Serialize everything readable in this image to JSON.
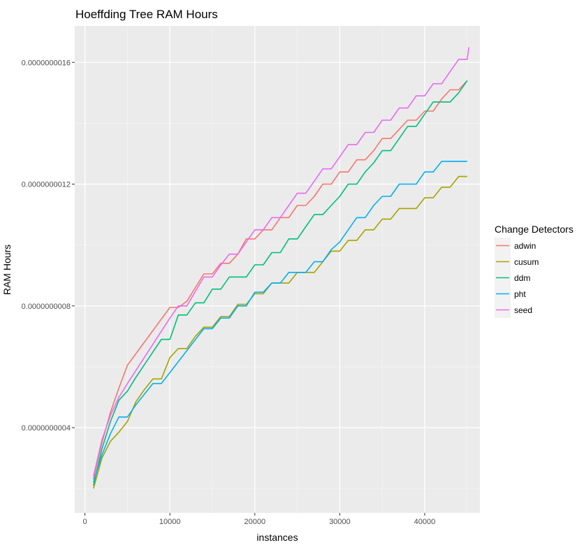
{
  "chart_data": {
    "type": "line",
    "title": "Hoeffding Tree RAM Hours",
    "xlabel": "instances",
    "ylabel": "RAM Hours",
    "xlim": [
      -1200,
      46500
    ],
    "ylim": [
      1.2e-10,
      1.72e-09
    ],
    "x_ticks": [
      0,
      10000,
      20000,
      30000,
      40000
    ],
    "x_tick_labels": [
      "0",
      "10000",
      "20000",
      "30000",
      "40000"
    ],
    "y_ticks": [
      4e-10,
      8e-10,
      1.2e-09,
      1.6e-09
    ],
    "y_tick_labels": [
      "0.0000000004",
      "0.0000000008",
      "0.0000000012",
      "0.0000000016"
    ],
    "grid": true,
    "background": "#ebebeb",
    "legend": {
      "title": "Change Detectors",
      "position": "right"
    },
    "series": [
      {
        "name": "adwin",
        "color": "#f8766d",
        "points": [
          [
            1000,
            2.3e-10
          ],
          [
            2000,
            3.5e-10
          ],
          [
            3000,
            4.5e-10
          ],
          [
            4000,
            5.3e-10
          ],
          [
            5000,
            6.05e-10
          ],
          [
            10000,
            7.95e-10
          ],
          [
            11000,
            7.95e-10
          ],
          [
            12000,
            8.15e-10
          ],
          [
            14000,
            9.05e-10
          ],
          [
            15000,
            9.05e-10
          ],
          [
            16000,
            9.4e-10
          ],
          [
            17000,
            9.4e-10
          ],
          [
            18000,
            9.7e-10
          ],
          [
            19000,
            1.02e-09
          ],
          [
            20000,
            1.02e-09
          ],
          [
            21000,
            1.05e-09
          ],
          [
            22000,
            1.05e-09
          ],
          [
            23000,
            1.09e-09
          ],
          [
            24000,
            1.09e-09
          ],
          [
            25000,
            1.13e-09
          ],
          [
            26000,
            1.13e-09
          ],
          [
            27000,
            1.16e-09
          ],
          [
            28000,
            1.2e-09
          ],
          [
            29000,
            1.2e-09
          ],
          [
            30000,
            1.24e-09
          ],
          [
            31000,
            1.24e-09
          ],
          [
            32000,
            1.28e-09
          ],
          [
            33000,
            1.28e-09
          ],
          [
            34000,
            1.31e-09
          ],
          [
            35000,
            1.35e-09
          ],
          [
            36000,
            1.35e-09
          ],
          [
            37000,
            1.38e-09
          ],
          [
            38000,
            1.41e-09
          ],
          [
            39000,
            1.41e-09
          ],
          [
            40000,
            1.44e-09
          ],
          [
            41000,
            1.44e-09
          ],
          [
            42000,
            1.48e-09
          ],
          [
            43000,
            1.51e-09
          ],
          [
            44000,
            1.51e-09
          ],
          [
            45000,
            1.54e-09
          ]
        ]
      },
      {
        "name": "cusum",
        "color": "#a3a500",
        "points": [
          [
            1000,
            2e-10
          ],
          [
            2000,
            3e-10
          ],
          [
            3000,
            3.55e-10
          ],
          [
            4000,
            3.85e-10
          ],
          [
            5000,
            4.2e-10
          ],
          [
            6000,
            4.85e-10
          ],
          [
            7000,
            5.25e-10
          ],
          [
            8000,
            5.6e-10
          ],
          [
            9000,
            5.6e-10
          ],
          [
            10000,
            6.3e-10
          ],
          [
            11000,
            6.6e-10
          ],
          [
            12000,
            6.6e-10
          ],
          [
            13000,
            7e-10
          ],
          [
            14000,
            7.3e-10
          ],
          [
            15000,
            7.3e-10
          ],
          [
            16000,
            7.65e-10
          ],
          [
            17000,
            7.65e-10
          ],
          [
            18000,
            8.05e-10
          ],
          [
            19000,
            8.05e-10
          ],
          [
            20000,
            8.4e-10
          ],
          [
            21000,
            8.4e-10
          ],
          [
            22000,
            8.75e-10
          ],
          [
            24000,
            8.75e-10
          ],
          [
            25000,
            9.1e-10
          ],
          [
            27000,
            9.1e-10
          ],
          [
            28000,
            9.45e-10
          ],
          [
            29000,
            9.8e-10
          ],
          [
            30000,
            9.8e-10
          ],
          [
            31000,
            1.015e-09
          ],
          [
            32000,
            1.015e-09
          ],
          [
            33000,
            1.05e-09
          ],
          [
            34000,
            1.05e-09
          ],
          [
            35000,
            1.085e-09
          ],
          [
            36000,
            1.085e-09
          ],
          [
            37000,
            1.12e-09
          ],
          [
            39000,
            1.12e-09
          ],
          [
            40000,
            1.155e-09
          ],
          [
            41000,
            1.155e-09
          ],
          [
            42000,
            1.19e-09
          ],
          [
            43000,
            1.19e-09
          ],
          [
            44000,
            1.225e-09
          ],
          [
            45000,
            1.225e-09
          ]
        ]
      },
      {
        "name": "ddm",
        "color": "#00bf7d",
        "points": [
          [
            1000,
            2.1e-10
          ],
          [
            2000,
            3.3e-10
          ],
          [
            3000,
            4.2e-10
          ],
          [
            4000,
            4.9e-10
          ],
          [
            5000,
            5.2e-10
          ],
          [
            6000,
            5.65e-10
          ],
          [
            9000,
            6.9e-10
          ],
          [
            10000,
            6.9e-10
          ],
          [
            11000,
            7.7e-10
          ],
          [
            12000,
            7.7e-10
          ],
          [
            13000,
            8.1e-10
          ],
          [
            14000,
            8.1e-10
          ],
          [
            15000,
            8.55e-10
          ],
          [
            16000,
            8.55e-10
          ],
          [
            17000,
            8.95e-10
          ],
          [
            19000,
            8.95e-10
          ],
          [
            20000,
            9.35e-10
          ],
          [
            21000,
            9.35e-10
          ],
          [
            22000,
            9.75e-10
          ],
          [
            23000,
            9.75e-10
          ],
          [
            24000,
            1.02e-09
          ],
          [
            25000,
            1.02e-09
          ],
          [
            26000,
            1.06e-09
          ],
          [
            27000,
            1.1e-09
          ],
          [
            28000,
            1.1e-09
          ],
          [
            29000,
            1.13e-09
          ],
          [
            30000,
            1.16e-09
          ],
          [
            31000,
            1.2e-09
          ],
          [
            32000,
            1.2e-09
          ],
          [
            33000,
            1.24e-09
          ],
          [
            34000,
            1.27e-09
          ],
          [
            35000,
            1.31e-09
          ],
          [
            36000,
            1.31e-09
          ],
          [
            37000,
            1.35e-09
          ],
          [
            38000,
            1.39e-09
          ],
          [
            39000,
            1.39e-09
          ],
          [
            40000,
            1.43e-09
          ],
          [
            41000,
            1.47e-09
          ],
          [
            43000,
            1.47e-09
          ],
          [
            44000,
            1.5e-09
          ],
          [
            45000,
            1.54e-09
          ]
        ]
      },
      {
        "name": "pht",
        "color": "#00b0f6",
        "points": [
          [
            1000,
            2.2e-10
          ],
          [
            2000,
            3.1e-10
          ],
          [
            3000,
            3.8e-10
          ],
          [
            4000,
            4.35e-10
          ],
          [
            5000,
            4.35e-10
          ],
          [
            6000,
            4.75e-10
          ],
          [
            8000,
            5.45e-10
          ],
          [
            9000,
            5.45e-10
          ],
          [
            14000,
            7.25e-10
          ],
          [
            15000,
            7.25e-10
          ],
          [
            16000,
            7.6e-10
          ],
          [
            17000,
            7.6e-10
          ],
          [
            18000,
            8e-10
          ],
          [
            19000,
            8e-10
          ],
          [
            20000,
            8.45e-10
          ],
          [
            21000,
            8.45e-10
          ],
          [
            22000,
            8.75e-10
          ],
          [
            23000,
            8.75e-10
          ],
          [
            24000,
            9.1e-10
          ],
          [
            26000,
            9.1e-10
          ],
          [
            27000,
            9.45e-10
          ],
          [
            28000,
            9.45e-10
          ],
          [
            29000,
            9.85e-10
          ],
          [
            30000,
            1.01e-09
          ],
          [
            31000,
            1.05e-09
          ],
          [
            32000,
            1.09e-09
          ],
          [
            33000,
            1.09e-09
          ],
          [
            34000,
            1.13e-09
          ],
          [
            35000,
            1.16e-09
          ],
          [
            36000,
            1.16e-09
          ],
          [
            37000,
            1.2e-09
          ],
          [
            39000,
            1.2e-09
          ],
          [
            40000,
            1.24e-09
          ],
          [
            41000,
            1.24e-09
          ],
          [
            42000,
            1.275e-09
          ],
          [
            45000,
            1.275e-09
          ]
        ]
      },
      {
        "name": "seed",
        "color": "#e76bf3",
        "points": [
          [
            1000,
            2.4e-10
          ],
          [
            2000,
            3.6e-10
          ],
          [
            3000,
            4.4e-10
          ],
          [
            4000,
            5e-10
          ],
          [
            5000,
            5.45e-10
          ],
          [
            10000,
            7.6e-10
          ],
          [
            11000,
            8e-10
          ],
          [
            12000,
            8e-10
          ],
          [
            14000,
            8.95e-10
          ],
          [
            15000,
            8.95e-10
          ],
          [
            16000,
            9.35e-10
          ],
          [
            17000,
            9.7e-10
          ],
          [
            18000,
            9.7e-10
          ],
          [
            19000,
            1.01e-09
          ],
          [
            20000,
            1.05e-09
          ],
          [
            21000,
            1.05e-09
          ],
          [
            22000,
            1.09e-09
          ],
          [
            23000,
            1.09e-09
          ],
          [
            24000,
            1.13e-09
          ],
          [
            25000,
            1.17e-09
          ],
          [
            26000,
            1.17e-09
          ],
          [
            27000,
            1.21e-09
          ],
          [
            28000,
            1.25e-09
          ],
          [
            29000,
            1.25e-09
          ],
          [
            30000,
            1.29e-09
          ],
          [
            31000,
            1.33e-09
          ],
          [
            32000,
            1.33e-09
          ],
          [
            33000,
            1.37e-09
          ],
          [
            34000,
            1.37e-09
          ],
          [
            35000,
            1.41e-09
          ],
          [
            36000,
            1.41e-09
          ],
          [
            37000,
            1.45e-09
          ],
          [
            38000,
            1.45e-09
          ],
          [
            39000,
            1.49e-09
          ],
          [
            40000,
            1.49e-09
          ],
          [
            41000,
            1.53e-09
          ],
          [
            42000,
            1.53e-09
          ],
          [
            43000,
            1.57e-09
          ],
          [
            44000,
            1.61e-09
          ],
          [
            45000,
            1.61e-09
          ],
          [
            45200,
            1.65e-09
          ]
        ]
      }
    ]
  }
}
